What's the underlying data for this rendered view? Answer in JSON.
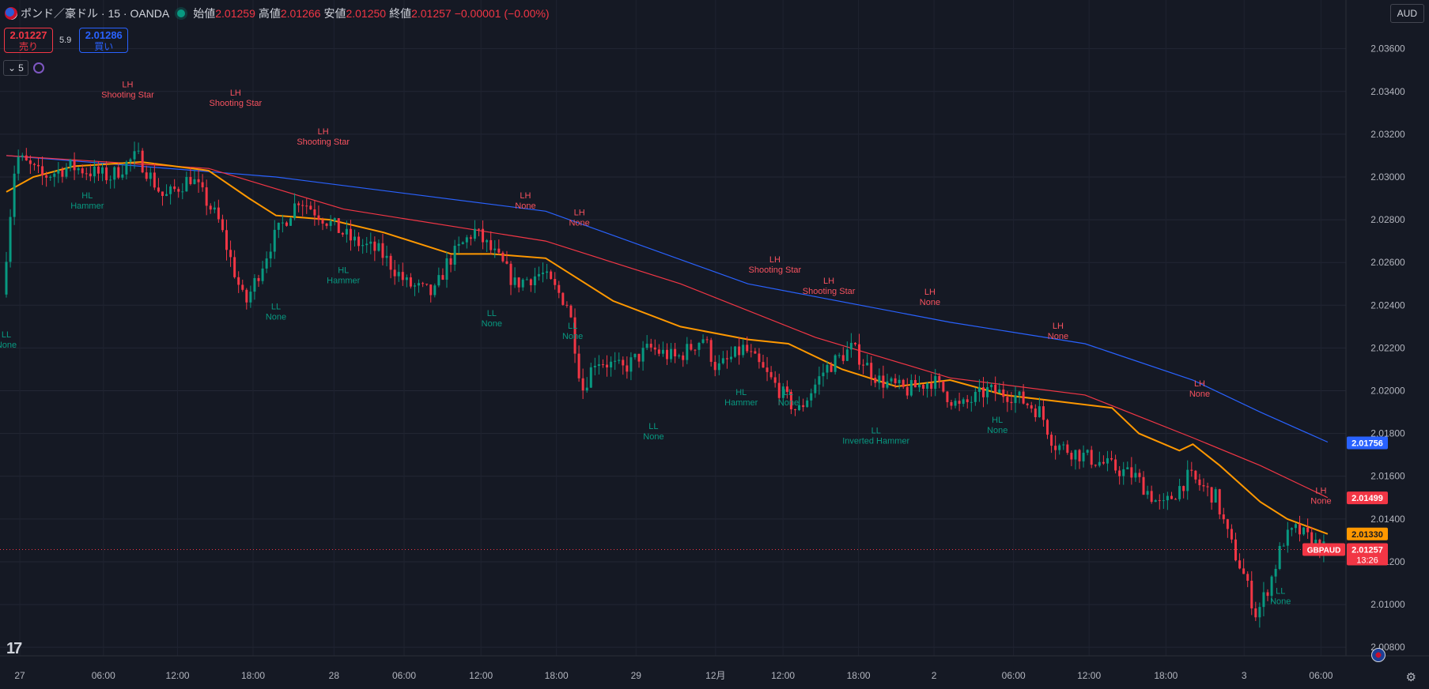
{
  "header": {
    "symbol_title": "ポンド／豪ドル · 15 · OANDA",
    "open_label": "始値",
    "open_value": "2.01259",
    "high_label": "高値",
    "high_value": "2.01266",
    "low_label": "安値",
    "low_value": "2.01250",
    "close_label": "終値",
    "close_value": "2.01257",
    "change": "−0.00001 (−0.00%)"
  },
  "trade_buttons": {
    "sell_price": "2.01227",
    "sell_label": "売り",
    "spread": "5.9",
    "buy_price": "2.01286",
    "buy_label": "買い"
  },
  "indicator_control": {
    "count": "5"
  },
  "currency_button": "AUD",
  "colors": {
    "background": "#151924",
    "up": "#089981",
    "down": "#f23645",
    "ma_blue": "#2962ff",
    "ma_red": "#f23645",
    "ma_orange": "#ff9800",
    "label_high": "#f7525f",
    "label_low": "#089981"
  },
  "chart_data": {
    "type": "candlestick",
    "symbol": "GBPAUD",
    "interval": "15",
    "ylim": [
      2.0076,
      2.0368
    ],
    "y_ticks": [
      "2.03600",
      "2.03400",
      "2.03200",
      "2.03000",
      "2.02800",
      "2.02600",
      "2.02400",
      "2.02200",
      "2.02000",
      "2.01800",
      "2.01600",
      "2.01400",
      "2.01200",
      "2.01000",
      "2.00800"
    ],
    "x_ticks": [
      "27",
      "06:00",
      "12:00",
      "18:00",
      "28",
      "06:00",
      "12:00",
      "18:00",
      "29",
      "12月",
      "12:00",
      "18:00",
      "2",
      "06:00",
      "12:00",
      "18:00",
      "3",
      "06:00"
    ],
    "close_path": [
      [
        0,
        2.0245
      ],
      [
        1,
        2.031
      ],
      [
        3,
        2.03
      ],
      [
        5,
        2.0305
      ],
      [
        8,
        2.03
      ],
      [
        10,
        2.031
      ],
      [
        12,
        2.029
      ],
      [
        14,
        2.03
      ],
      [
        16,
        2.028
      ],
      [
        18,
        2.024
      ],
      [
        20,
        2.027
      ],
      [
        22,
        2.029
      ],
      [
        24,
        2.028
      ],
      [
        26,
        2.027
      ],
      [
        28,
        2.0265
      ],
      [
        30,
        2.025
      ],
      [
        32,
        2.0245
      ],
      [
        33,
        2.026
      ],
      [
        35,
        2.0275
      ],
      [
        37,
        2.026
      ],
      [
        38,
        2.025
      ],
      [
        40,
        2.0255
      ],
      [
        42,
        2.024
      ],
      [
        43,
        2.02
      ],
      [
        44,
        2.0215
      ],
      [
        46,
        2.021
      ],
      [
        48,
        2.022
      ],
      [
        50,
        2.0215
      ],
      [
        52,
        2.0225
      ],
      [
        53,
        2.021
      ],
      [
        55,
        2.022
      ],
      [
        57,
        2.0205
      ],
      [
        59,
        2.019
      ],
      [
        61,
        2.021
      ],
      [
        63,
        2.022
      ],
      [
        65,
        2.0205
      ],
      [
        67,
        2.02
      ],
      [
        69,
        2.0205
      ],
      [
        71,
        2.0192
      ],
      [
        73,
        2.02
      ],
      [
        75,
        2.0198
      ],
      [
        77,
        2.019
      ],
      [
        78,
        2.0175
      ],
      [
        80,
        2.017
      ],
      [
        82,
        2.0165
      ],
      [
        84,
        2.016
      ],
      [
        86,
        2.0145
      ],
      [
        88,
        2.016
      ],
      [
        90,
        2.015
      ],
      [
        91,
        2.013
      ],
      [
        92,
        2.0115
      ],
      [
        93,
        2.0095
      ],
      [
        94,
        2.011
      ],
      [
        95,
        2.013
      ],
      [
        96,
        2.0135
      ],
      [
        97,
        2.013
      ],
      [
        98,
        2.0126
      ]
    ],
    "moving_averages": [
      {
        "name": "",
        "color": "#2962ff",
        "last": "2.01756",
        "points": [
          [
            0,
            2.031
          ],
          [
            20,
            2.03
          ],
          [
            40,
            2.0284
          ],
          [
            55,
            2.025
          ],
          [
            70,
            2.0232
          ],
          [
            80,
            2.0222
          ],
          [
            88,
            2.0205
          ],
          [
            93,
            2.019
          ],
          [
            98,
            2.0176
          ]
        ]
      },
      {
        "name": "",
        "color": "#f23645",
        "last": "2.01499",
        "points": [
          [
            0,
            2.031
          ],
          [
            15,
            2.0304
          ],
          [
            25,
            2.0285
          ],
          [
            40,
            2.027
          ],
          [
            50,
            2.025
          ],
          [
            60,
            2.0225
          ],
          [
            70,
            2.0206
          ],
          [
            80,
            2.0198
          ],
          [
            88,
            2.0178
          ],
          [
            93,
            2.0165
          ],
          [
            98,
            2.015
          ]
        ]
      },
      {
        "name": "",
        "color": "#ff9800",
        "last": "2.01330",
        "points": [
          [
            0,
            2.0293
          ],
          [
            2,
            2.03
          ],
          [
            5,
            2.0305
          ],
          [
            10,
            2.0307
          ],
          [
            15,
            2.0303
          ],
          [
            18,
            2.029
          ],
          [
            20,
            2.0282
          ],
          [
            24,
            2.028
          ],
          [
            28,
            2.0274
          ],
          [
            33,
            2.0264
          ],
          [
            36,
            2.0264
          ],
          [
            40,
            2.0262
          ],
          [
            45,
            2.0242
          ],
          [
            50,
            2.023
          ],
          [
            55,
            2.0224
          ],
          [
            58,
            2.0222
          ],
          [
            62,
            2.021
          ],
          [
            66,
            2.0202
          ],
          [
            70,
            2.0205
          ],
          [
            74,
            2.0198
          ],
          [
            78,
            2.0195
          ],
          [
            82,
            2.0192
          ],
          [
            84,
            2.018
          ],
          [
            87,
            2.0172
          ],
          [
            88,
            2.0175
          ],
          [
            90,
            2.0165
          ],
          [
            93,
            2.0148
          ],
          [
            95,
            2.014
          ],
          [
            98,
            2.0133
          ]
        ]
      }
    ],
    "price_label_current": {
      "symbol": "GBPAUD",
      "value": "2.01257",
      "countdown": "13:26"
    },
    "annotations": [
      {
        "t": 0,
        "price": 2.0225,
        "kind": "low",
        "l1": "LL",
        "l2": "None"
      },
      {
        "t": 9,
        "price": 2.0342,
        "kind": "high",
        "l1": "LH",
        "l2": "Shooting Star"
      },
      {
        "t": 6,
        "price": 2.029,
        "kind": "low",
        "l1": "HL",
        "l2": "Hammer"
      },
      {
        "t": 17,
        "price": 2.0338,
        "kind": "high",
        "l1": "LH",
        "l2": "Shooting Star"
      },
      {
        "t": 23.5,
        "price": 2.032,
        "kind": "high",
        "l1": "LH",
        "l2": "Shooting Star"
      },
      {
        "t": 25,
        "price": 2.0255,
        "kind": "low",
        "l1": "HL",
        "l2": "Hammer"
      },
      {
        "t": 20,
        "price": 2.0238,
        "kind": "low",
        "l1": "LL",
        "l2": "None"
      },
      {
        "t": 38.5,
        "price": 2.029,
        "kind": "high",
        "l1": "LH",
        "l2": "None"
      },
      {
        "t": 42.5,
        "price": 2.0282,
        "kind": "high",
        "l1": "LH",
        "l2": "None"
      },
      {
        "t": 36,
        "price": 2.0235,
        "kind": "low",
        "l1": "LL",
        "l2": "None"
      },
      {
        "t": 42,
        "price": 2.0229,
        "kind": "low",
        "l1": "LL",
        "l2": "None"
      },
      {
        "t": 48,
        "price": 2.0182,
        "kind": "low",
        "l1": "LL",
        "l2": "None"
      },
      {
        "t": 57,
        "price": 2.026,
        "kind": "high",
        "l1": "LH",
        "l2": "Shooting Star"
      },
      {
        "t": 61,
        "price": 2.025,
        "kind": "high",
        "l1": "LH",
        "l2": "Shooting Star"
      },
      {
        "t": 54.5,
        "price": 2.0198,
        "kind": "low",
        "l1": "HL",
        "l2": "Hammer"
      },
      {
        "t": 58,
        "price": 2.0198,
        "kind": "low",
        "l1": "LL",
        "l2": "None"
      },
      {
        "t": 64.5,
        "price": 2.018,
        "kind": "low",
        "l1": "LL",
        "l2": "Inverted Hammer"
      },
      {
        "t": 68.5,
        "price": 2.0245,
        "kind": "high",
        "l1": "LH",
        "l2": "None"
      },
      {
        "t": 78,
        "price": 2.0229,
        "kind": "high",
        "l1": "LH",
        "l2": "None"
      },
      {
        "t": 73.5,
        "price": 2.0185,
        "kind": "low",
        "l1": "HL",
        "l2": "None"
      },
      {
        "t": 88.5,
        "price": 2.0202,
        "kind": "high",
        "l1": "LH",
        "l2": "None"
      },
      {
        "t": 97.5,
        "price": 2.0152,
        "kind": "high",
        "l1": "LH",
        "l2": "None"
      },
      {
        "t": 94.5,
        "price": 2.0105,
        "kind": "low",
        "l1": "LL",
        "l2": "None"
      }
    ]
  }
}
